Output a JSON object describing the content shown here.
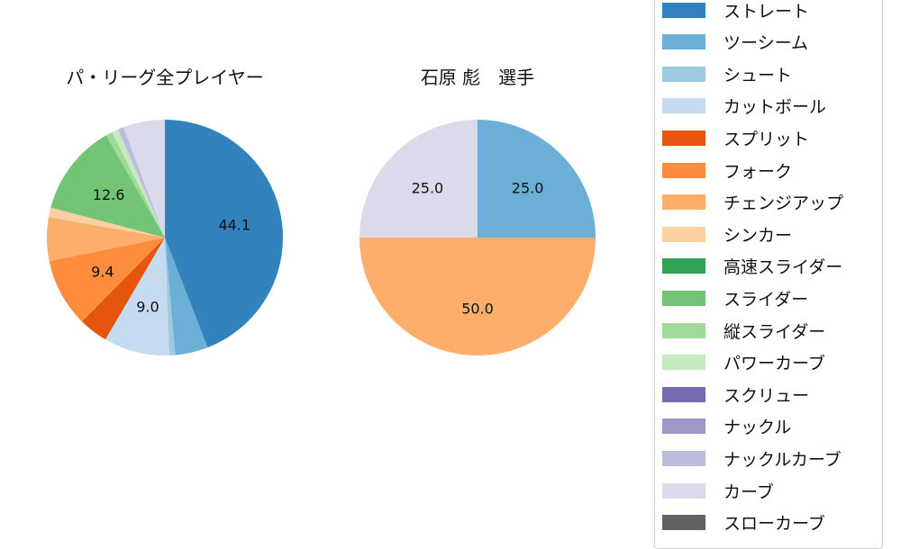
{
  "chart_data": [
    {
      "type": "pie",
      "title": "パ・リーグ全プレイヤー",
      "start_angle": 90,
      "direction": "clockwise",
      "categories": [
        "ストレート",
        "ツーシーム",
        "シュート",
        "カットボール",
        "スプリット",
        "フォーク",
        "チェンジアップ",
        "シンカー",
        "スライダー",
        "縦スライダー",
        "パワーカーブ",
        "ナックルカーブ",
        "カーブ"
      ],
      "values": [
        44.1,
        4.5,
        0.8,
        9.0,
        4.0,
        9.4,
        6.0,
        1.3,
        12.6,
        0.9,
        0.9,
        0.8,
        5.7
      ],
      "colors": [
        "#3182bd",
        "#6baed6",
        "#9ecae1",
        "#c6dbef",
        "#e6550d",
        "#fd8d3c",
        "#fdae6b",
        "#fdd0a2",
        "#74c476",
        "#a1d99b",
        "#c7e9c0",
        "#bcbddc",
        "#dadaeb"
      ],
      "data_labels": {
        "ストレート": "44.1",
        "カットボール": "9.0",
        "フォーク": "9.4",
        "スライダー": "12.6"
      }
    },
    {
      "type": "pie",
      "title": "石原 彪　選手",
      "start_angle": 90,
      "direction": "clockwise",
      "categories": [
        "ツーシーム",
        "チェンジアップ",
        "カーブ"
      ],
      "values": [
        25.0,
        50.0,
        25.0
      ],
      "colors": [
        "#6baed6",
        "#fdae6b",
        "#dadaeb"
      ],
      "data_labels": {
        "ツーシーム": "25.0",
        "チェンジアップ": "50.0",
        "カーブ": "25.0"
      }
    }
  ],
  "titles": {
    "left": "パ・リーグ全プレイヤー",
    "right": "石原 彪　選手"
  },
  "legend": [
    {
      "label": "ストレート",
      "color": "#3182bd"
    },
    {
      "label": "ツーシーム",
      "color": "#6baed6"
    },
    {
      "label": "シュート",
      "color": "#9ecae1"
    },
    {
      "label": "カットボール",
      "color": "#c6dbef"
    },
    {
      "label": "スプリット",
      "color": "#e6550d"
    },
    {
      "label": "フォーク",
      "color": "#fd8d3c"
    },
    {
      "label": "チェンジアップ",
      "color": "#fdae6b"
    },
    {
      "label": "シンカー",
      "color": "#fdd0a2"
    },
    {
      "label": "高速スライダー",
      "color": "#31a354"
    },
    {
      "label": "スライダー",
      "color": "#74c476"
    },
    {
      "label": "縦スライダー",
      "color": "#a1d99b"
    },
    {
      "label": "パワーカーブ",
      "color": "#c7e9c0"
    },
    {
      "label": "スクリュー",
      "color": "#756bb1"
    },
    {
      "label": "ナックル",
      "color": "#9e9ac8"
    },
    {
      "label": "ナックルカーブ",
      "color": "#bcbddc"
    },
    {
      "label": "カーブ",
      "color": "#dadaeb"
    },
    {
      "label": "スローカーブ",
      "color": "#636363"
    }
  ]
}
